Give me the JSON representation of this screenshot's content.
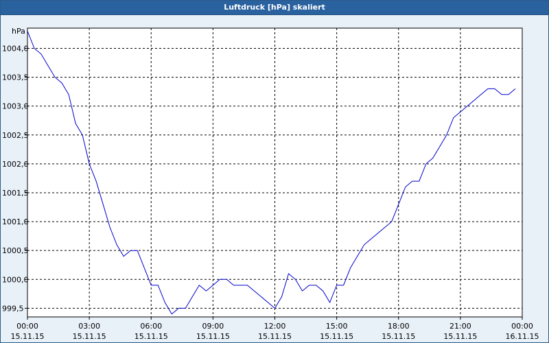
{
  "window": {
    "title": "Luftdruck [hPa] skaliert"
  },
  "chart_data": {
    "type": "line",
    "title": "Luftdruck [hPa] skaliert",
    "ylabel": "hPa",
    "xlabel": "",
    "xlim": [
      "2015-11-15 00:00",
      "2015-11-16 00:00"
    ],
    "ylim": [
      999.35,
      1004.35
    ],
    "grid": true,
    "y_ticks": [
      "999,5",
      "1000,0",
      "1000,5",
      "1001,0",
      "1001,5",
      "1002,0",
      "1002,5",
      "1003,0",
      "1003,5",
      "1004,0"
    ],
    "x_ticks": [
      {
        "time": "00:00",
        "date": "15.11.15"
      },
      {
        "time": "03:00",
        "date": "15.11.15"
      },
      {
        "time": "06:00",
        "date": "15.11.15"
      },
      {
        "time": "09:00",
        "date": "15.11.15"
      },
      {
        "time": "12:00",
        "date": "15.11.15"
      },
      {
        "time": "15:00",
        "date": "15.11.15"
      },
      {
        "time": "18:00",
        "date": "15.11.15"
      },
      {
        "time": "21:00",
        "date": "15.11.15"
      },
      {
        "time": "00:00",
        "date": "16.11.15"
      }
    ],
    "series": [
      {
        "color": "#0000cc",
        "points": [
          [
            "00:00",
            1004.3
          ],
          [
            "00:20",
            1004.0
          ],
          [
            "00:40",
            1003.9
          ],
          [
            "01:00",
            1003.7
          ],
          [
            "01:20",
            1003.5
          ],
          [
            "01:40",
            1003.4
          ],
          [
            "02:00",
            1003.2
          ],
          [
            "02:20",
            1002.7
          ],
          [
            "02:40",
            1002.5
          ],
          [
            "03:00",
            1002.0
          ],
          [
            "03:20",
            1001.7
          ],
          [
            "03:40",
            1001.3
          ],
          [
            "04:00",
            1000.9
          ],
          [
            "04:20",
            1000.6
          ],
          [
            "04:40",
            1000.4
          ],
          [
            "05:00",
            1000.5
          ],
          [
            "05:20",
            1000.5
          ],
          [
            "05:40",
            1000.2
          ],
          [
            "06:00",
            999.9
          ],
          [
            "06:20",
            999.9
          ],
          [
            "06:40",
            999.6
          ],
          [
            "07:00",
            999.4
          ],
          [
            "07:20",
            999.5
          ],
          [
            "07:40",
            999.5
          ],
          [
            "08:00",
            999.7
          ],
          [
            "08:20",
            999.9
          ],
          [
            "08:40",
            999.8
          ],
          [
            "09:00",
            999.9
          ],
          [
            "09:20",
            1000.0
          ],
          [
            "09:40",
            1000.0
          ],
          [
            "10:00",
            999.9
          ],
          [
            "10:20",
            999.9
          ],
          [
            "10:40",
            999.9
          ],
          [
            "11:00",
            999.8
          ],
          [
            "11:20",
            999.7
          ],
          [
            "11:40",
            999.6
          ],
          [
            "12:00",
            999.5
          ],
          [
            "12:20",
            999.7
          ],
          [
            "12:40",
            1000.1
          ],
          [
            "13:00",
            1000.0
          ],
          [
            "13:20",
            999.8
          ],
          [
            "13:40",
            999.9
          ],
          [
            "14:00",
            999.9
          ],
          [
            "14:20",
            999.8
          ],
          [
            "14:40",
            999.6
          ],
          [
            "15:00",
            999.9
          ],
          [
            "15:20",
            999.9
          ],
          [
            "15:40",
            1000.2
          ],
          [
            "16:00",
            1000.4
          ],
          [
            "16:20",
            1000.6
          ],
          [
            "16:40",
            1000.7
          ],
          [
            "17:00",
            1000.8
          ],
          [
            "17:20",
            1000.9
          ],
          [
            "17:40",
            1001.0
          ],
          [
            "18:00",
            1001.3
          ],
          [
            "18:20",
            1001.6
          ],
          [
            "18:40",
            1001.7
          ],
          [
            "19:00",
            1001.7
          ],
          [
            "19:20",
            1002.0
          ],
          [
            "19:40",
            1002.1
          ],
          [
            "20:00",
            1002.3
          ],
          [
            "20:20",
            1002.5
          ],
          [
            "20:40",
            1002.8
          ],
          [
            "21:00",
            1002.9
          ],
          [
            "21:20",
            1003.0
          ],
          [
            "21:40",
            1003.1
          ],
          [
            "22:00",
            1003.2
          ],
          [
            "22:20",
            1003.3
          ],
          [
            "22:40",
            1003.3
          ],
          [
            "23:00",
            1003.2
          ],
          [
            "23:20",
            1003.2
          ],
          [
            "23:40",
            1003.3
          ]
        ]
      }
    ]
  }
}
